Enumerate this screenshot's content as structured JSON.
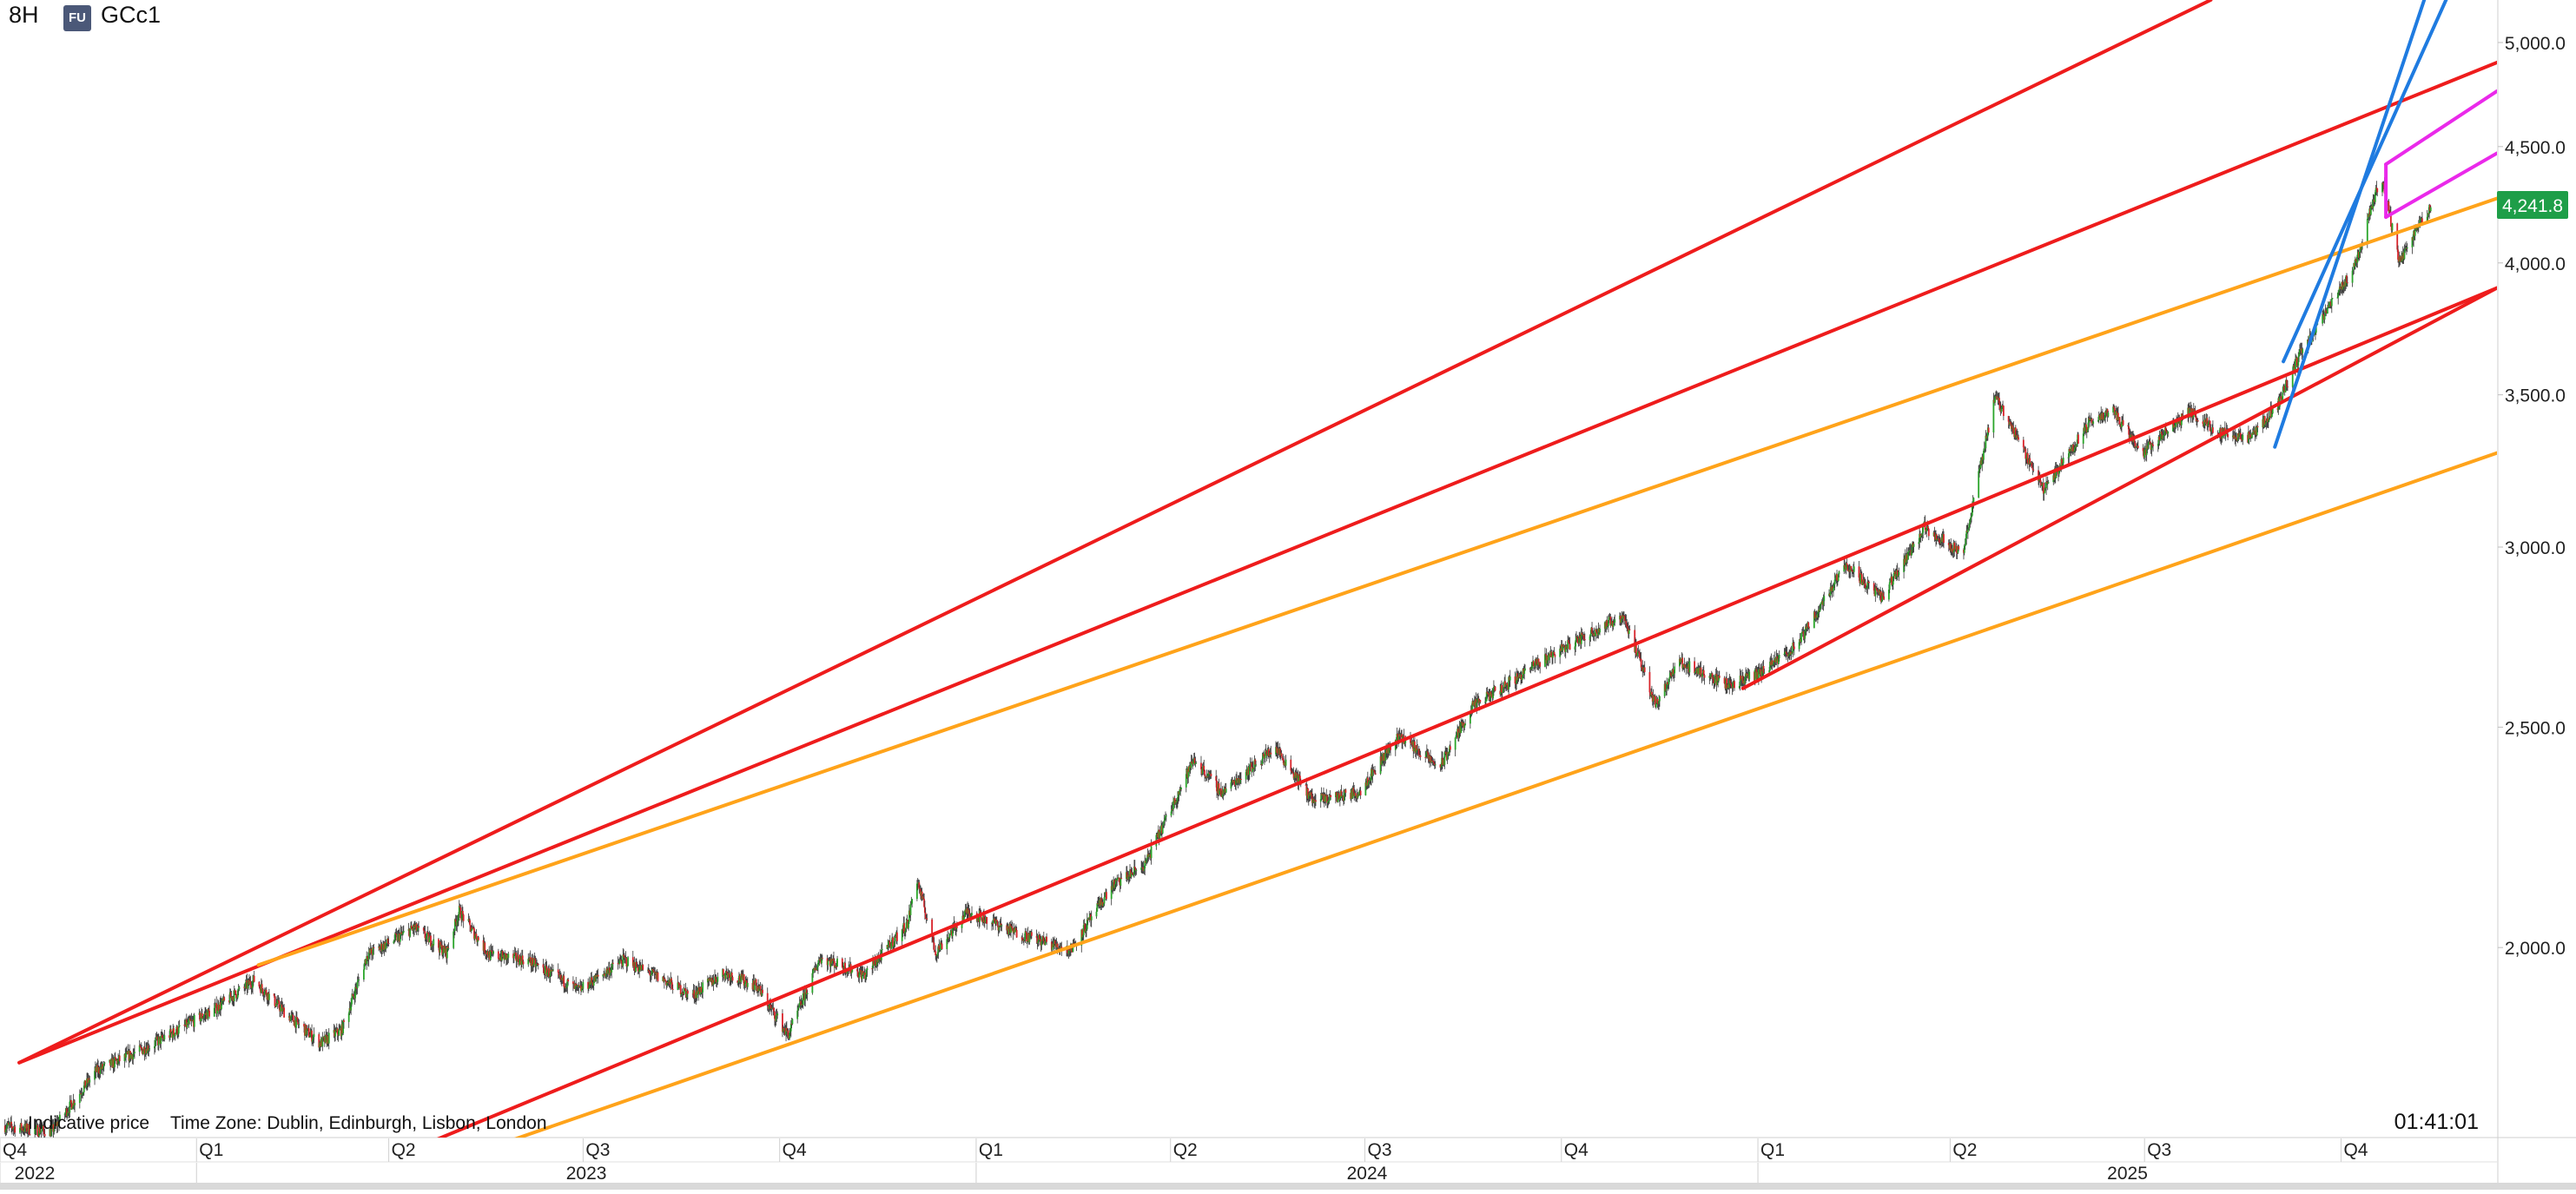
{
  "header": {
    "timeframe": "8H",
    "badge": "FU",
    "symbol": "GCc1"
  },
  "footer": {
    "indicative": "Indicative price",
    "timezone": "Time Zone: Dublin, Edinburgh, Lisbon, London",
    "clock": "01:41:01"
  },
  "colors": {
    "up": "#2aa52a",
    "down": "#d8232a",
    "red_line": "#ee1c1c",
    "orange_line": "#ffa31a",
    "blue_line": "#1f7be0",
    "magenta_line": "#ea29ea",
    "price_tag": "#1e9e48"
  },
  "chart_data": {
    "type": "candlestick",
    "scale": "log",
    "ylim": [
      1650,
      5220
    ],
    "y_ticks": [
      "5,000.0",
      "4,500.0",
      "4,000.0",
      "3,500.0",
      "3,000.0",
      "2,500.0",
      "2,000.0"
    ],
    "y_tick_values": [
      5000,
      4500,
      4000,
      3500,
      3000,
      2500,
      2000
    ],
    "last_price": 4241.8,
    "last_price_label": "4,241.8",
    "x_quarters": [
      "Q4",
      "Q1",
      "Q2",
      "Q3",
      "Q4",
      "Q1",
      "Q2",
      "Q3",
      "Q4",
      "Q1",
      "Q2",
      "Q3",
      "Q4"
    ],
    "x_quarter_dates": [
      "2022-10-01",
      "2023-01-01",
      "2023-04-01",
      "2023-07-01",
      "2023-10-01",
      "2024-01-01",
      "2024-04-01",
      "2024-07-01",
      "2024-10-01",
      "2025-01-01",
      "2025-04-01",
      "2025-07-01",
      "2025-10-01"
    ],
    "x_years": [
      "2022",
      "2023",
      "2024",
      "2025"
    ],
    "x_year_dates": [
      "2022-10-01",
      "2023-01-01",
      "2024-01-01",
      "2025-01-01"
    ],
    "x_range": [
      "2022-10-01",
      "2025-12-13"
    ],
    "price_path": [
      [
        "2022-10-01",
        1670
      ],
      [
        "2022-10-25",
        1660
      ],
      [
        "2022-11-15",
        1765
      ],
      [
        "2022-12-10",
        1810
      ],
      [
        "2023-01-10",
        1880
      ],
      [
        "2023-01-28",
        1935
      ],
      [
        "2023-02-12",
        1870
      ],
      [
        "2023-02-28",
        1815
      ],
      [
        "2023-03-10",
        1840
      ],
      [
        "2023-03-22",
        1985
      ],
      [
        "2023-04-13",
        2040
      ],
      [
        "2023-04-28",
        1990
      ],
      [
        "2023-05-04",
        2075
      ],
      [
        "2023-05-18",
        1985
      ],
      [
        "2023-06-05",
        1975
      ],
      [
        "2023-06-29",
        1915
      ],
      [
        "2023-07-20",
        1975
      ],
      [
        "2023-08-08",
        1935
      ],
      [
        "2023-08-21",
        1905
      ],
      [
        "2023-09-05",
        1950
      ],
      [
        "2023-09-20",
        1925
      ],
      [
        "2023-10-05",
        1830
      ],
      [
        "2023-10-20",
        1980
      ],
      [
        "2023-11-10",
        1945
      ],
      [
        "2023-11-30",
        2050
      ],
      [
        "2023-12-04",
        2150
      ],
      [
        "2023-12-13",
        1990
      ],
      [
        "2023-12-28",
        2075
      ],
      [
        "2024-01-20",
        2030
      ],
      [
        "2024-02-14",
        1995
      ],
      [
        "2024-03-05",
        2130
      ],
      [
        "2024-03-20",
        2175
      ],
      [
        "2024-04-12",
        2420
      ],
      [
        "2024-04-25",
        2340
      ],
      [
        "2024-05-20",
        2450
      ],
      [
        "2024-06-07",
        2320
      ],
      [
        "2024-06-28",
        2340
      ],
      [
        "2024-07-17",
        2480
      ],
      [
        "2024-08-05",
        2400
      ],
      [
        "2024-08-20",
        2550
      ],
      [
        "2024-09-26",
        2690
      ],
      [
        "2024-10-30",
        2800
      ],
      [
        "2024-11-14",
        2560
      ],
      [
        "2024-11-25",
        2670
      ],
      [
        "2024-12-18",
        2610
      ],
      [
        "2025-01-02",
        2640
      ],
      [
        "2025-01-20",
        2720
      ],
      [
        "2025-02-11",
        2950
      ],
      [
        "2025-02-28",
        2850
      ],
      [
        "2025-03-20",
        3060
      ],
      [
        "2025-04-07",
        2980
      ],
      [
        "2025-04-22",
        3500
      ],
      [
        "2025-05-15",
        3180
      ],
      [
        "2025-06-05",
        3400
      ],
      [
        "2025-06-16",
        3450
      ],
      [
        "2025-06-30",
        3300
      ],
      [
        "2025-07-22",
        3440
      ],
      [
        "2025-08-05",
        3370
      ],
      [
        "2025-08-20",
        3350
      ],
      [
        "2025-09-01",
        3460
      ],
      [
        "2025-09-12",
        3650
      ],
      [
        "2025-09-23",
        3790
      ],
      [
        "2025-10-08",
        4000
      ],
      [
        "2025-10-14",
        4200
      ],
      [
        "2025-10-20",
        4380
      ],
      [
        "2025-10-28",
        4000
      ],
      [
        "2025-11-03",
        4100
      ],
      [
        "2025-11-12",
        4241.8
      ]
    ],
    "trendlines": [
      {
        "color": "red",
        "start": [
          "2022-10-10",
          1780
        ],
        "end": [
          "2025-08-01",
          5220
        ]
      },
      {
        "color": "red",
        "start": [
          "2022-10-10",
          1780
        ],
        "end": [
          "2025-12-13",
          4900
        ]
      },
      {
        "color": "red",
        "start": [
          "2023-03-01",
          1570
        ],
        "end": [
          "2025-12-13",
          3900
        ]
      },
      {
        "color": "red",
        "start": [
          "2024-12-25",
          2600
        ],
        "end": [
          "2025-12-13",
          3900
        ]
      },
      {
        "color": "orange",
        "start": [
          "2023-01-30",
          1965
        ],
        "end": [
          "2025-12-13",
          4270
        ]
      },
      {
        "color": "orange",
        "start": [
          "2023-03-01",
          1540
        ],
        "end": [
          "2025-12-13",
          3300
        ]
      },
      {
        "color": "blue",
        "start": [
          "2025-08-31",
          3320
        ],
        "end": [
          "2025-11-17",
          5500
        ]
      },
      {
        "color": "blue",
        "start": [
          "2025-09-04",
          3620
        ],
        "end": [
          "2025-11-30",
          5500
        ]
      },
      {
        "color": "magenta",
        "start": [
          "2025-10-22",
          4420
        ],
        "end": [
          "2025-12-13",
          4760
        ]
      },
      {
        "color": "magenta",
        "start": [
          "2025-10-22",
          4190
        ],
        "end": [
          "2025-12-13",
          4470
        ]
      },
      {
        "color": "magenta",
        "start": [
          "2025-10-22",
          4190
        ],
        "end": [
          "2025-10-22",
          4420
        ]
      }
    ]
  }
}
